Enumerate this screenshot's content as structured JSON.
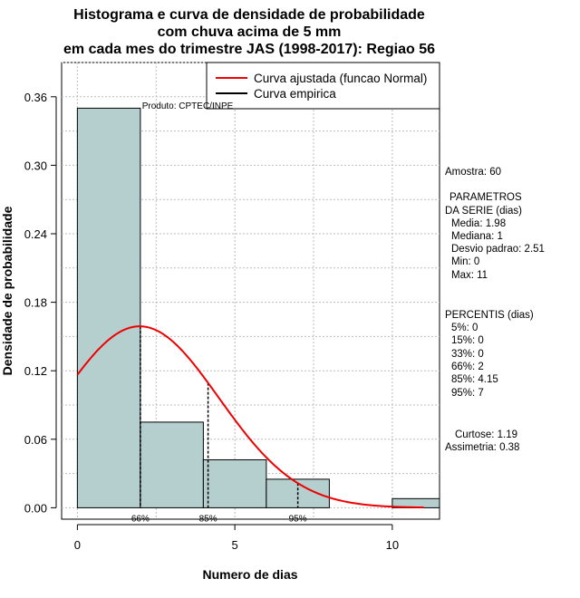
{
  "chart_data": {
    "type": "bar",
    "title_lines": [
      "Histograma e curva de densidade de probabilidade",
      "com chuva acima de 5 mm",
      "em cada mes do trimestre JAS (1998-2017): Regiao 56"
    ],
    "xlabel": "Numero de dias",
    "ylabel": "Densidade de probabilidade",
    "xlim": [
      -0.5,
      11.5
    ],
    "ylim": [
      -0.01,
      0.39
    ],
    "x_ticks": [
      0,
      5,
      10
    ],
    "y_ticks": [
      0.0,
      0.06,
      0.12,
      0.18,
      0.24,
      0.3,
      0.36
    ],
    "y_tick_labels": [
      "0.00",
      "0.06",
      "0.12",
      "0.18",
      "0.24",
      "0.30",
      "0.36"
    ],
    "grid": true,
    "bins": [
      {
        "start": 0,
        "end": 2,
        "density": 0.35
      },
      {
        "start": 2,
        "end": 4,
        "density": 0.075
      },
      {
        "start": 4,
        "end": 6,
        "density": 0.042
      },
      {
        "start": 6,
        "end": 8,
        "density": 0.025
      },
      {
        "start": 8,
        "end": 10,
        "density": 0.0
      },
      {
        "start": 10,
        "end": 12,
        "density": 0.008
      }
    ],
    "curve": {
      "name": "Curva ajustada (funcao Normal)",
      "type": "normal",
      "mean": 1.98,
      "sd": 2.51,
      "x_range": [
        0,
        11
      ],
      "color": "#ee0000"
    },
    "empirical": {
      "name": "Curva empirica",
      "color": "#000000"
    },
    "percentile_markers": [
      {
        "label": "66%",
        "x": 2
      },
      {
        "label": "85%",
        "x": 4.15
      },
      {
        "label": "95%",
        "x": 7
      }
    ],
    "legend_position": "top-right",
    "bar_color": "#b5cfcf",
    "source_label": "Produto: CPTEC/INPE"
  },
  "stats": {
    "sample": "Amostra: 60",
    "params_header_1": "PARAMETROS",
    "params_header_2": "DA SERIE (dias)",
    "params": [
      "Media: 1.98",
      "Mediana: 1",
      "Desvio padrao: 2.51",
      "Min: 0",
      "Max: 11"
    ],
    "percentis_header": "PERCENTIS (dias)",
    "percentis": [
      "5%: 0",
      "15%: 0",
      "33%: 0",
      "66%: 2",
      "85%: 4.15",
      "95%: 7"
    ],
    "curtose": "Curtose: 1.19",
    "assimetria": "Assimetria: 0.38"
  }
}
